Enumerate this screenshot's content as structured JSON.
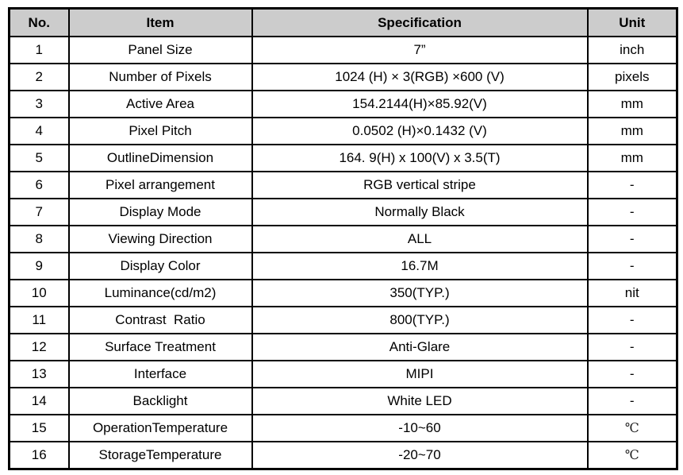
{
  "colors": {
    "header_bg": "#cccccc",
    "border": "#000000",
    "text": "#000000"
  },
  "table": {
    "columns": [
      {
        "label": "No."
      },
      {
        "label": "Item"
      },
      {
        "label": "Specification"
      },
      {
        "label": "Unit"
      }
    ],
    "rows": [
      {
        "no": "1",
        "item": "Panel Size",
        "spec": "7”",
        "unit": "inch"
      },
      {
        "no": "2",
        "item": "Number of Pixels",
        "spec": "1024 (H) × 3(RGB) ×600 (V)",
        "unit": "pixels"
      },
      {
        "no": "3",
        "item": "Active Area",
        "spec": "154.2144(H)×85.92(V)",
        "unit": "mm"
      },
      {
        "no": "4",
        "item": "Pixel Pitch",
        "spec": "0.0502 (H)×0.1432 (V)",
        "unit": "mm"
      },
      {
        "no": "5",
        "item": "OutlineDimension",
        "spec": "164. 9(H) x 100(V) x 3.5(T)",
        "unit": "mm"
      },
      {
        "no": "6",
        "item": "Pixel arrangement",
        "spec": "RGB vertical stripe",
        "unit": "-"
      },
      {
        "no": "7",
        "item": "Display Mode",
        "spec": "Normally Black",
        "unit": "-"
      },
      {
        "no": "8",
        "item": "Viewing Direction",
        "spec": "ALL",
        "unit": "-"
      },
      {
        "no": "9",
        "item": "Display Color",
        "spec": "16.7M",
        "unit": "-"
      },
      {
        "no": "10",
        "item": "Luminance(cd/m2)",
        "spec": "350(TYP.)",
        "unit": "nit"
      },
      {
        "no": "11",
        "item": "Contrast  Ratio",
        "spec": "800(TYP.)",
        "unit": "-"
      },
      {
        "no": "12",
        "item": "Surface Treatment",
        "spec": "Anti-Glare",
        "unit": "-"
      },
      {
        "no": "13",
        "item": "Interface",
        "spec": "MIPI",
        "unit": "-"
      },
      {
        "no": "14",
        "item": "Backlight",
        "spec": "White LED",
        "unit": "-"
      },
      {
        "no": "15",
        "item": "OperationTemperature",
        "spec": "-10~60",
        "unit": "℃"
      },
      {
        "no": "16",
        "item": "StorageTemperature",
        "spec": "-20~70",
        "unit": "℃"
      }
    ]
  }
}
